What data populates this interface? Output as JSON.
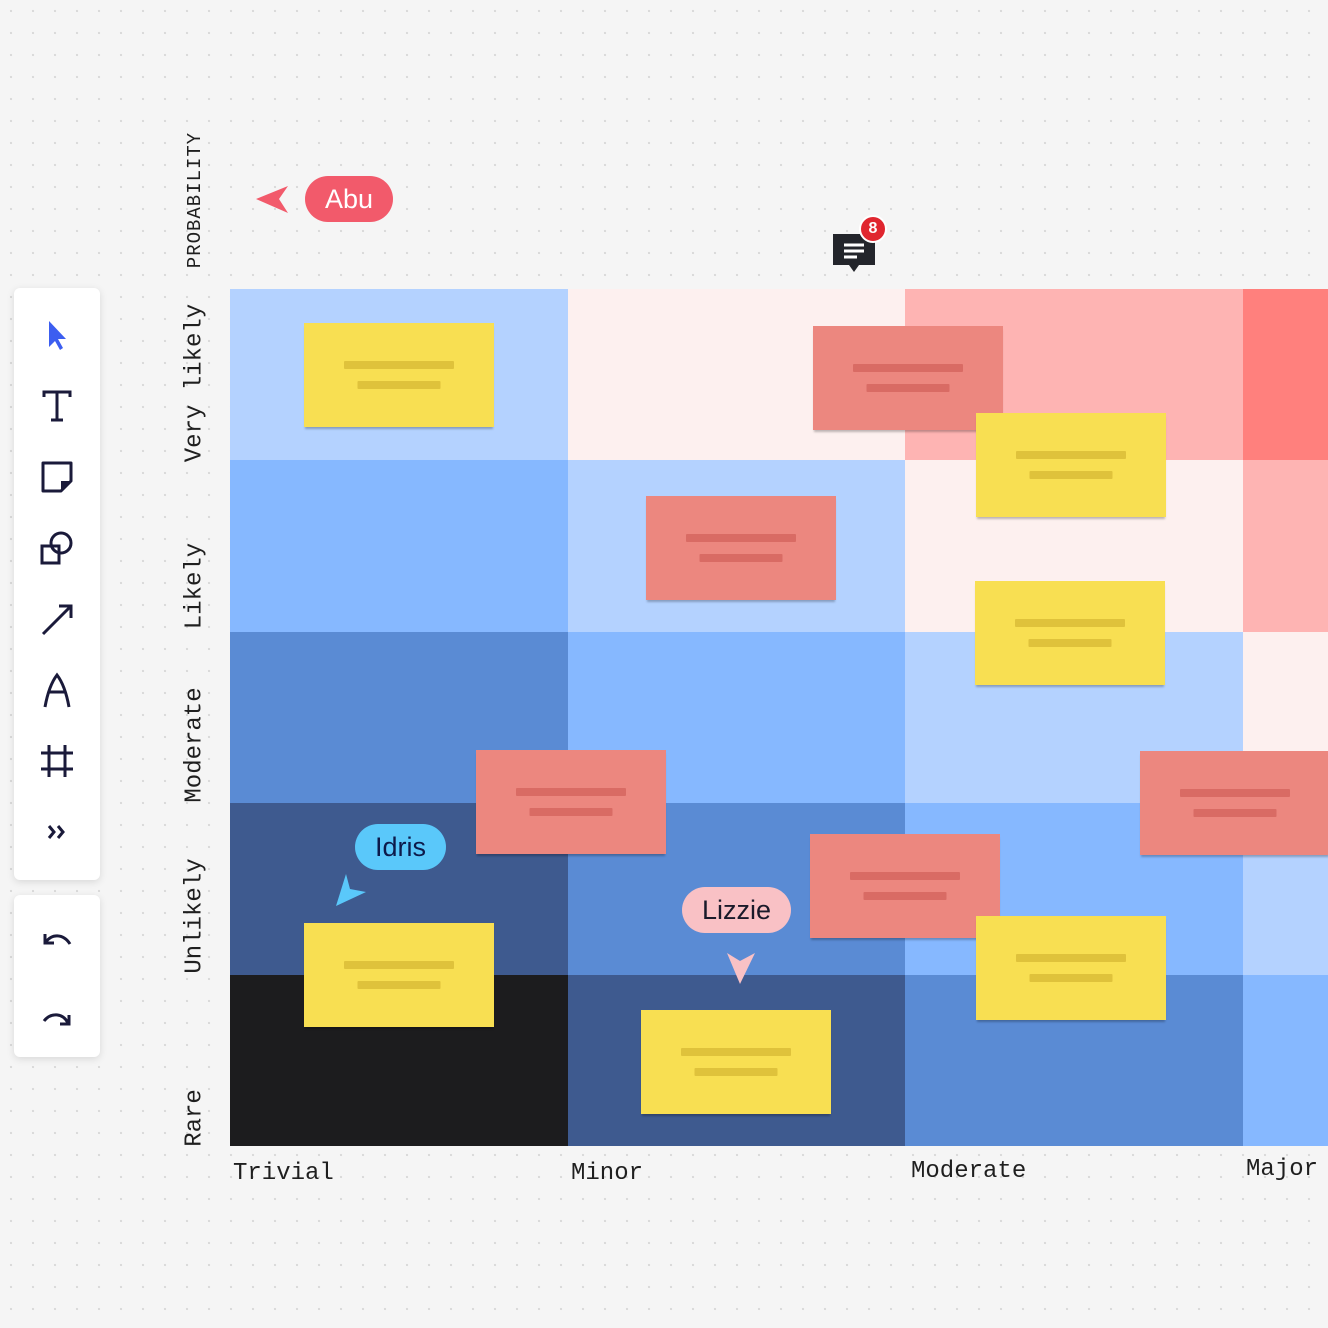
{
  "toolbar": {
    "tools": [
      {
        "name": "select-tool",
        "icon": "cursor-icon"
      },
      {
        "name": "text-tool",
        "icon": "text-icon"
      },
      {
        "name": "sticky-note-tool",
        "icon": "sticky-note-icon"
      },
      {
        "name": "shapes-tool",
        "icon": "shapes-icon"
      },
      {
        "name": "connector-tool",
        "icon": "arrow-icon"
      },
      {
        "name": "pen-tool",
        "icon": "pen-icon"
      },
      {
        "name": "frame-tool",
        "icon": "frame-icon"
      },
      {
        "name": "more-tools",
        "icon": "chevrons-right-icon"
      }
    ],
    "history": [
      {
        "name": "undo-button",
        "icon": "undo-icon"
      },
      {
        "name": "redo-button",
        "icon": "redo-icon"
      }
    ]
  },
  "matrix": {
    "y_axis_title": "PROBABILITY",
    "rows": [
      "Very likely",
      "Likely",
      "Moderate",
      "Unlikely",
      "Rare"
    ],
    "columns": [
      "Trivial",
      "Minor",
      "Moderate",
      "Major"
    ],
    "cell_colors": [
      [
        "#b4d2ff",
        "#fdf0ef",
        "#feb4b3",
        "#ff807d"
      ],
      [
        "#86b8ff",
        "#b4d2ff",
        "#fdf0ef",
        "#feb4b3"
      ],
      [
        "#5a8bd4",
        "#86b8ff",
        "#b4d2ff",
        "#fdf0ef"
      ],
      [
        "#3e5a8f",
        "#5a8bd4",
        "#86b8ff",
        "#b4d2ff"
      ],
      [
        "#1c1c1e",
        "#3e5a8f",
        "#5a8bd4",
        "#86b8ff"
      ]
    ]
  },
  "sticky_note_colors": {
    "yellow": "#f8df52",
    "red": "#ec877f"
  },
  "collaborators": [
    {
      "name": "Abu",
      "color": "#f25a6b"
    },
    {
      "name": "Idris",
      "color": "#5ac8fa"
    },
    {
      "name": "Lizzie",
      "color": "#f9c1c5"
    }
  ],
  "comment": {
    "count": "8",
    "icon": "comment-icon"
  }
}
